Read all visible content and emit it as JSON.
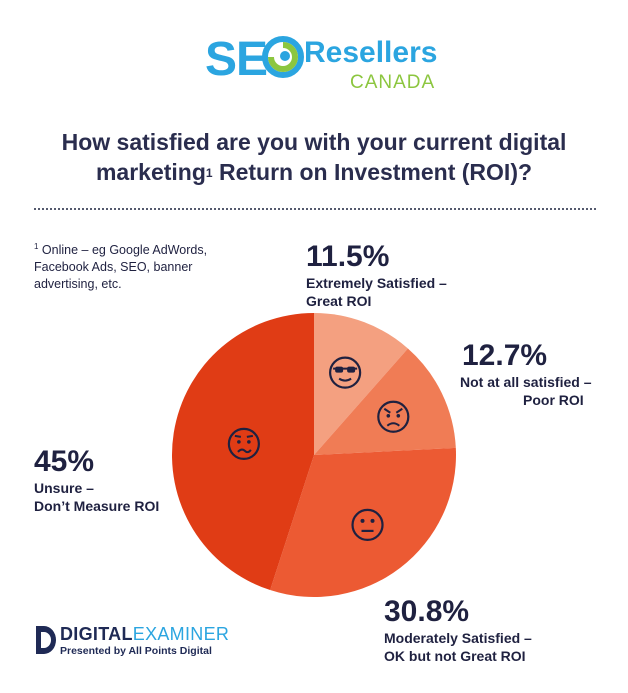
{
  "logo": {
    "seo": "SE",
    "resellers": "Resellers",
    "canada": "CANADA"
  },
  "title_main": "How satisfied are you with your current digital marketing",
  "title_sup": "1",
  "title_end": " Return on Investment (ROI)?",
  "footnote": {
    "marker": "1",
    "text": " Online – eg Google AdWords, Facebook Ads, SEO, banner advertising, etc."
  },
  "colors": {
    "extremely": "#f4a080",
    "not_at_all": "#f07c55",
    "moderately": "#ec5a33",
    "unsure": "#e03c15",
    "text": "#1f2140",
    "accent": "#2ba5e0",
    "green": "#8cc63f"
  },
  "chart_data": {
    "type": "pie",
    "title": "How satisfied are you with your current digital marketing Return on Investment (ROI)?",
    "slices": [
      {
        "label": "Extremely Satisfied – Great ROI",
        "label_line1": "Extremely Satisfied –",
        "label_line2": "Great ROI",
        "value": 11.5,
        "display": "11.5%",
        "icon": "cool-sunglasses-face-icon"
      },
      {
        "label": "Not at all satisfied – Poor ROI",
        "label_line1": "Not at all satisfied –",
        "label_line2": "Poor ROI",
        "value": 12.7,
        "display": "12.7%",
        "icon": "angry-face-icon"
      },
      {
        "label": "Moderately Satisfied – OK but not Great ROI",
        "label_line1": "Moderately Satisfied –",
        "label_line2": "OK but not Great ROI",
        "value": 30.8,
        "display": "30.8%",
        "icon": "neutral-face-icon"
      },
      {
        "label": "Unsure – Don't Measure ROI",
        "label_line1": "Unsure –",
        "label_line2": "Don’t Measure ROI",
        "value": 45,
        "display": "45%",
        "icon": "confused-face-icon"
      }
    ]
  },
  "footer": {
    "brand_a": "DIGITAL",
    "brand_b": "EXAMINER",
    "sub": "Presented by All Points Digital"
  }
}
